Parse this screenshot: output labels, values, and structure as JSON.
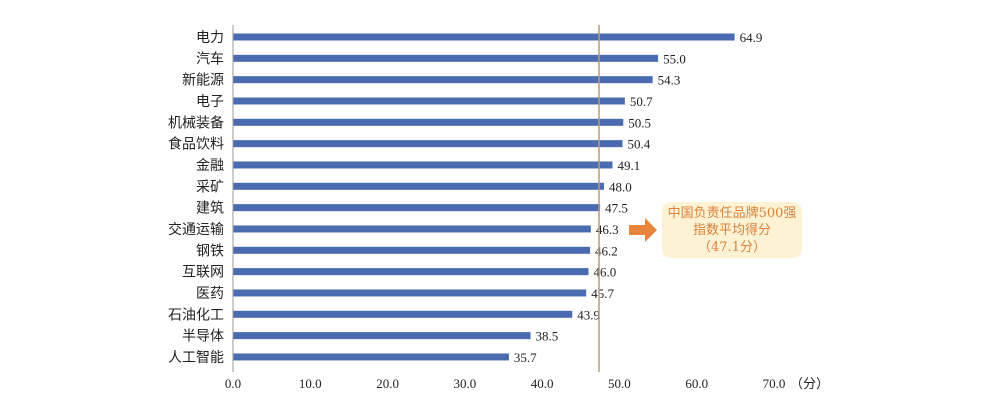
{
  "chart_data": {
    "type": "bar",
    "orientation": "horizontal",
    "categories": [
      "电力",
      "汽车",
      "新能源",
      "电子",
      "机械装备",
      "食品饮料",
      "金融",
      "采矿",
      "建筑",
      "交通运输",
      "钢铁",
      "互联网",
      "医药",
      "石油化工",
      "半导体",
      "人工智能"
    ],
    "values": [
      64.9,
      55.0,
      54.3,
      50.7,
      50.5,
      50.4,
      49.1,
      48.0,
      47.5,
      46.3,
      46.2,
      46.0,
      45.7,
      43.9,
      38.5,
      35.7
    ],
    "value_labels": [
      "64.9",
      "55.0",
      "54.3",
      "50.7",
      "50.5",
      "50.4",
      "49.1",
      "48.0",
      "47.5",
      "46.3",
      "46.2",
      "46.0",
      "45.7",
      "43.9",
      "38.5",
      "35.7"
    ],
    "xlim": [
      0,
      70
    ],
    "xticks": [
      "0.0",
      "10.0",
      "20.0",
      "30.0",
      "40.0",
      "50.0",
      "60.0",
      "70.0"
    ],
    "xunit": "（分）",
    "bar_color": "#4a6bb0",
    "reference_line": {
      "value": 47.1,
      "color": "#b89c74"
    },
    "annotation": {
      "lines": [
        "中国负责任品牌500强",
        "指数平均得分",
        "（47.1分）"
      ],
      "text_color": "#d9823b",
      "box_color": "#fdf2d3",
      "arrow_color": "#e8843c"
    },
    "grid": false,
    "legend": "none"
  }
}
